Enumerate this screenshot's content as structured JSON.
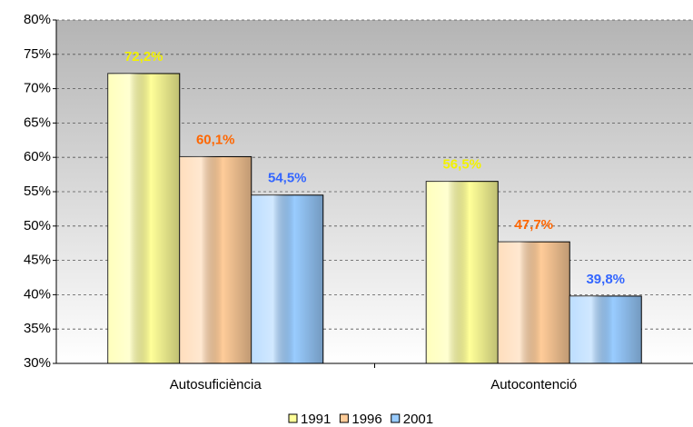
{
  "chart_data": {
    "type": "bar",
    "categories": [
      "Autosuficiència",
      "Autocontenció"
    ],
    "series": [
      {
        "name": "1991",
        "color": "#ffff99",
        "label_color": "#f2f200",
        "values": [
          72.2,
          56.5
        ],
        "value_labels": [
          "72,2%",
          "56,5%"
        ]
      },
      {
        "name": "1996",
        "color": "#ffcc99",
        "label_color": "#ff6600",
        "values": [
          60.1,
          47.7
        ],
        "value_labels": [
          "60,1%",
          "47,7%"
        ]
      },
      {
        "name": "2001",
        "color": "#99ccff",
        "label_color": "#3366ff",
        "values": [
          54.5,
          39.8
        ],
        "value_labels": [
          "54,5%",
          "39,8%"
        ]
      }
    ],
    "ylim": [
      30,
      80
    ],
    "yticks": [
      {
        "value": 30,
        "label": "30%"
      },
      {
        "value": 35,
        "label": "35%"
      },
      {
        "value": 40,
        "label": "40%"
      },
      {
        "value": 45,
        "label": "45%"
      },
      {
        "value": 50,
        "label": "50%"
      },
      {
        "value": 55,
        "label": "55%"
      },
      {
        "value": 60,
        "label": "60%"
      },
      {
        "value": 65,
        "label": "65%"
      },
      {
        "value": 70,
        "label": "70%"
      },
      {
        "value": 75,
        "label": "75%"
      },
      {
        "value": 80,
        "label": "80%"
      }
    ],
    "grid": true,
    "legend": "bottom"
  }
}
